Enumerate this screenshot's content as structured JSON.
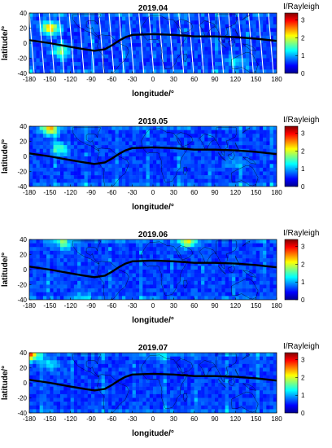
{
  "chart_data": [
    {
      "type": "heatmap",
      "title": "2019.04",
      "xlabel": "longitude/°",
      "ylabel": "latitude/°",
      "colorbar_label": "I/Rayleigh",
      "xlim": [
        -180,
        180
      ],
      "ylim": [
        -40,
        40
      ],
      "xticks": [
        "-180",
        "-150",
        "-120",
        "-90",
        "-60",
        "-30",
        "0",
        "30",
        "60",
        "90",
        "120",
        "150",
        "180"
      ],
      "yticks": [
        "40",
        "20",
        "0",
        "-20",
        "-40"
      ],
      "colorbar_ticks": [
        "3",
        "2",
        "1",
        "0"
      ],
      "colorbar_range": [
        0,
        3.4
      ],
      "swath_gaps": true,
      "hotspots": [
        {
          "lon": -150,
          "lat": 20,
          "value": 2.4
        },
        {
          "lon": -135,
          "lat": -10,
          "value": 1.6
        },
        {
          "lon": 120,
          "lat": -25,
          "value": 1.2
        }
      ]
    },
    {
      "type": "heatmap",
      "title": "2019.05",
      "xlabel": "longitude/°",
      "ylabel": "latitude/°",
      "colorbar_label": "I/Rayleigh",
      "xlim": [
        -180,
        180
      ],
      "ylim": [
        -40,
        40
      ],
      "xticks": [
        "-180",
        "-150",
        "-120",
        "-90",
        "-60",
        "-30",
        "0",
        "30",
        "60",
        "90",
        "120",
        "150",
        "180"
      ],
      "yticks": [
        "40",
        "20",
        "0",
        "-20",
        "-40"
      ],
      "colorbar_ticks": [
        "3",
        "2",
        "1",
        "0"
      ],
      "colorbar_range": [
        0,
        3.4
      ],
      "swath_gaps": false,
      "hotspots": [
        {
          "lon": -150,
          "lat": 36,
          "value": 2.2
        },
        {
          "lon": -135,
          "lat": 10,
          "value": 1.5
        },
        {
          "lon": 120,
          "lat": -10,
          "value": 1.0
        }
      ]
    },
    {
      "type": "heatmap",
      "title": "2019.06",
      "xlabel": "longitude/°",
      "ylabel": "latitude/°",
      "colorbar_label": "I/Rayleigh",
      "xlim": [
        -180,
        180
      ],
      "ylim": [
        -40,
        40
      ],
      "xticks": [
        "-180",
        "-150",
        "-120",
        "-90",
        "-60",
        "-30",
        "0",
        "30",
        "60",
        "90",
        "120",
        "150",
        "180"
      ],
      "yticks": [
        "40",
        "20",
        "0",
        "-20",
        "-40"
      ],
      "colorbar_ticks": [
        "3",
        "2",
        "1",
        "0"
      ],
      "colorbar_range": [
        0,
        3.4
      ],
      "swath_gaps": false,
      "hotspots": [
        {
          "lon": -130,
          "lat": 35,
          "value": 1.5
        },
        {
          "lon": 50,
          "lat": 37,
          "value": 1.8
        },
        {
          "lon": -100,
          "lat": -38,
          "value": 1.0
        }
      ]
    },
    {
      "type": "heatmap",
      "title": "2019.07",
      "xlabel": "longitude/°",
      "ylabel": "latitude/°",
      "colorbar_label": "I/Rayleigh",
      "xlim": [
        -180,
        180
      ],
      "ylim": [
        -40,
        40
      ],
      "xticks": [
        "-180",
        "-150",
        "-120",
        "-90",
        "-60",
        "-30",
        "0",
        "30",
        "60",
        "90",
        "120",
        "150",
        "180"
      ],
      "yticks": [
        "40",
        "20",
        "0",
        "-20",
        "-40"
      ],
      "colorbar_ticks": [
        "3",
        "2",
        "1",
        "0"
      ],
      "colorbar_range": [
        0,
        3.4
      ],
      "swath_gaps": false,
      "hotspots": [
        {
          "lon": -178,
          "lat": 37,
          "value": 2.4
        },
        {
          "lon": -150,
          "lat": 25,
          "value": 1.2
        },
        {
          "lon": 10,
          "lat": 37,
          "value": 1.0
        }
      ]
    }
  ],
  "dip_equator": {
    "lon": [
      -180,
      -150,
      -120,
      -100,
      -85,
      -70,
      -60,
      -50,
      -40,
      -30,
      0,
      30,
      60,
      90,
      120,
      150,
      180
    ],
    "lat": [
      4,
      0,
      -5,
      -8,
      -10,
      -8,
      -3,
      3,
      8,
      11,
      12,
      11,
      9,
      9,
      8,
      6,
      3
    ]
  },
  "colors": {
    "background_blue": "#1a2fd6",
    "dip_equator_line": "#000000",
    "coastline": "#000000"
  }
}
